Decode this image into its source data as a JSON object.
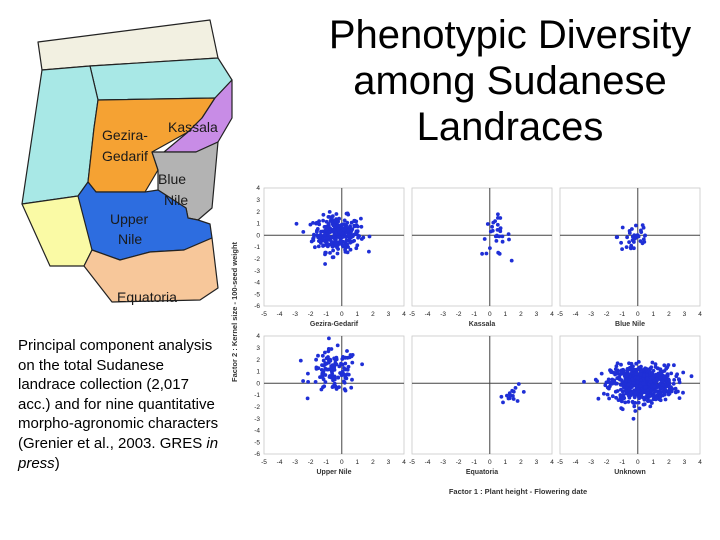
{
  "slide": {
    "title_lines": [
      "Phenotypic Diversity",
      "among Sudanese",
      "Landraces"
    ],
    "caption": {
      "part1": "Principal component analysis on the total Sudanese landrace collection (2,017 acc.) and for nine quantitative morpho-agronomic characters (Grenier et al., 2003. GRES ",
      "italic1": "in press",
      "part2": ")"
    }
  },
  "map": {
    "regions": [
      {
        "name": "Kassala",
        "color": "#c88ce6"
      },
      {
        "name": "Gezira-Gedarif",
        "line1": "Gezira-",
        "line2": "Gedarif",
        "color": "#f5a233"
      },
      {
        "name": "Blue Nile",
        "line1": "Blue",
        "line2": "Nile",
        "color": "#b3b3b3"
      },
      {
        "name": "Upper Nile",
        "line1": "Upper",
        "line2": "Nile",
        "color": "#2d6de0"
      },
      {
        "name": "Equatoria",
        "color": "#f7c79a"
      }
    ],
    "other_colors": {
      "north": "#f2f0e1",
      "northeast": "#a8e8e6",
      "west": "#a8e8e6",
      "southwest": "#fafaa5"
    }
  },
  "chart_data": {
    "type": "scatter",
    "title": "",
    "xlabel": "Factor 1 : Plant height - Flowering date",
    "ylabel": "Factor 2 : Kernel size - 100-seed weight",
    "xlim": [
      -5,
      4
    ],
    "ylim": [
      -6,
      4
    ],
    "x_ticks": [
      -5,
      -4,
      -3,
      -2,
      -1,
      0,
      1,
      2,
      3,
      4
    ],
    "y_ticks": [
      4,
      3,
      2,
      1,
      0,
      -1,
      -2,
      -3,
      -4,
      -5,
      -6
    ],
    "point_color": "#1f2fd6",
    "panels": [
      {
        "name": "Gezira-Gedarif",
        "label": "Gezira-Gedarif",
        "approx_count": 300,
        "center_x": -0.3,
        "center_y": 0.1,
        "spread_x": 0.75,
        "spread_y": 0.75
      },
      {
        "name": "Kassala",
        "label": "Kassala",
        "approx_count": 30,
        "center_x": 0.4,
        "center_y": -0.1,
        "spread_x": 0.45,
        "spread_y": 0.8
      },
      {
        "name": "Blue Nile",
        "label": "Blue Nile",
        "approx_count": 35,
        "center_x": -0.2,
        "center_y": -0.1,
        "spread_x": 0.55,
        "spread_y": 0.9
      },
      {
        "name": "Upper Nile",
        "label": "Upper Nile",
        "approx_count": 120,
        "center_x": -0.5,
        "center_y": 1.0,
        "spread_x": 0.75,
        "spread_y": 0.9
      },
      {
        "name": "Equatoria",
        "label": "Equatoria",
        "approx_count": 15,
        "center_x": 1.6,
        "center_y": -0.9,
        "spread_x": 0.45,
        "spread_y": 0.35
      },
      {
        "name": "Unknown",
        "label": "Unknown",
        "approx_count": 650,
        "center_x": 0.3,
        "center_y": 0.0,
        "spread_x": 1.0,
        "spread_y": 0.75
      }
    ]
  }
}
